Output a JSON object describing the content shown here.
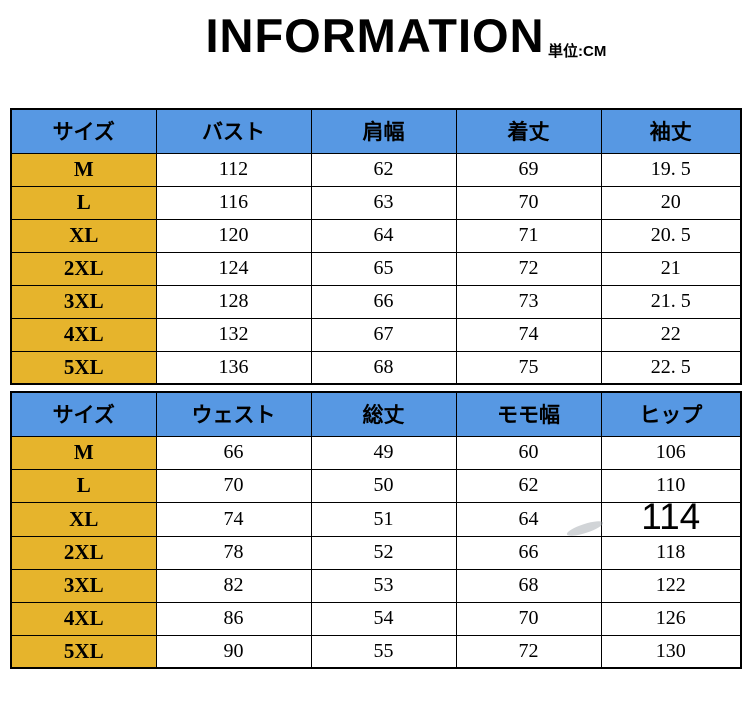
{
  "page": {
    "title": "INFORMATION",
    "unit_label": "単位:CM"
  },
  "colors": {
    "header_blue": "#5798e3",
    "size_yellow": "#e6b42c",
    "border": "#000000",
    "text": "#000000"
  },
  "tables": [
    {
      "headers": [
        "サイズ",
        "バスト",
        "肩幅",
        "着丈",
        "袖丈"
      ],
      "rows": [
        [
          "M",
          "112",
          "62",
          "69",
          "19. 5"
        ],
        [
          "L",
          "116",
          "63",
          "70",
          "20"
        ],
        [
          "XL",
          "120",
          "64",
          "71",
          "20. 5"
        ],
        [
          "2XL",
          "124",
          "65",
          "72",
          "21"
        ],
        [
          "3XL",
          "128",
          "66",
          "73",
          "21. 5"
        ],
        [
          "4XL",
          "132",
          "67",
          "74",
          "22"
        ],
        [
          "5XL",
          "136",
          "68",
          "75",
          "22. 5"
        ]
      ]
    },
    {
      "headers": [
        "サイズ",
        "ウェスト",
        "総丈",
        "モモ幅",
        "ヒップ"
      ],
      "rows": [
        [
          "M",
          "66",
          "49",
          "60",
          "106"
        ],
        [
          "L",
          "70",
          "50",
          "62",
          "110"
        ],
        [
          "XL",
          "74",
          "51",
          "64",
          "114"
        ],
        [
          "2XL",
          "78",
          "52",
          "66",
          "118"
        ],
        [
          "3XL",
          "82",
          "53",
          "68",
          "122"
        ],
        [
          "4XL",
          "86",
          "54",
          "70",
          "126"
        ],
        [
          "5XL",
          "90",
          "55",
          "72",
          "130"
        ]
      ],
      "oversized_cell": {
        "row": 2,
        "col": 4
      }
    }
  ]
}
